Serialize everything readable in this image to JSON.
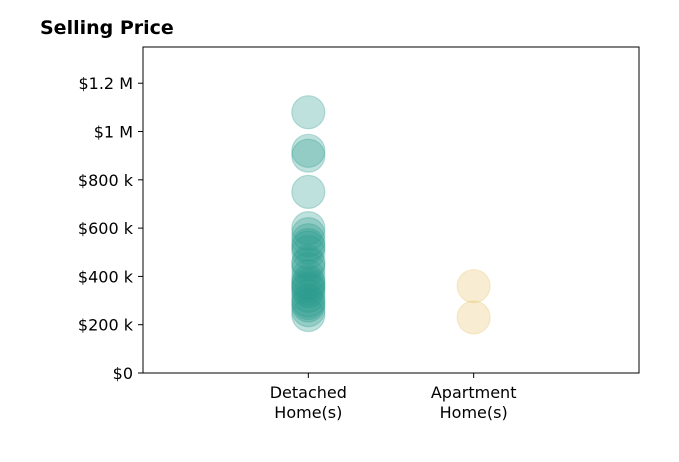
{
  "chart_data": {
    "type": "scatter",
    "title": "Selling Price",
    "xlabel": "",
    "ylabel": "",
    "categories": [
      "Detached\nHome(s)",
      "Apartment\nHome(s)"
    ],
    "category_positions": [
      1,
      2
    ],
    "xlim": [
      0,
      3
    ],
    "ylim": [
      0,
      1350000
    ],
    "y_ticks": [
      {
        "value": 0,
        "label": "$0"
      },
      {
        "value": 200000,
        "label": "$200 k"
      },
      {
        "value": 400000,
        "label": "$400 k"
      },
      {
        "value": 600000,
        "label": "$600 k"
      },
      {
        "value": 800000,
        "label": "$800 k"
      },
      {
        "value": 1000000,
        "label": "$1 M"
      },
      {
        "value": 1200000,
        "label": "$1.2 M"
      }
    ],
    "grid": false,
    "legend": "none",
    "series": [
      {
        "category": "Detached\nHome(s)",
        "color": "#2a9d8f",
        "opacity": 0.3,
        "values": [
          1080000,
          920000,
          900000,
          750000,
          600000,
          575000,
          550000,
          530000,
          520000,
          500000,
          460000,
          450000,
          430000,
          400000,
          380000,
          370000,
          360000,
          350000,
          340000,
          320000,
          300000,
          290000,
          280000,
          260000,
          240000
        ]
      },
      {
        "category": "Apartment\nHome(s)",
        "color": "#e9c46a",
        "opacity": 0.3,
        "values": [
          360000,
          230000
        ]
      }
    ]
  }
}
